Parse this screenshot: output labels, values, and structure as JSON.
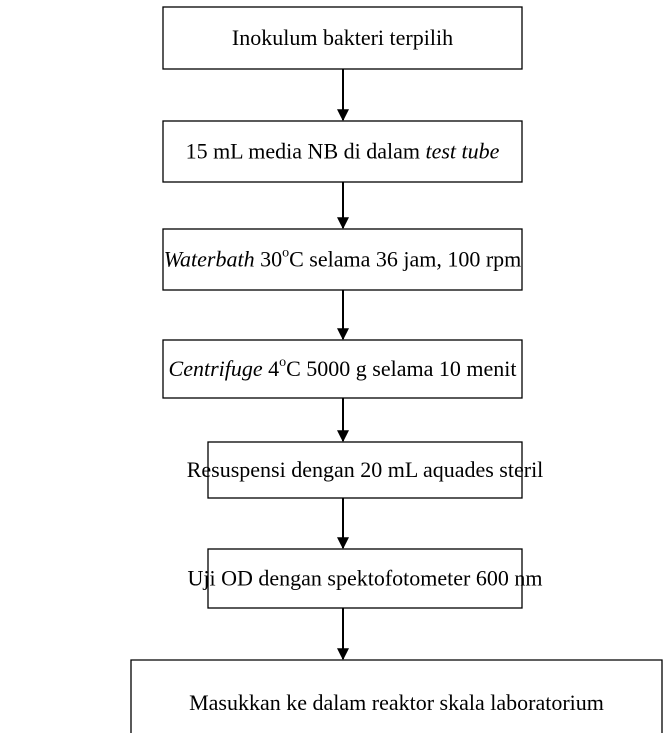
{
  "nodes": [
    {
      "parts": [
        {
          "text": "Inokulum bakteri terpilih"
        }
      ]
    },
    {
      "parts": [
        {
          "text": "15 mL media NB di dalam "
        },
        {
          "text": "test tube",
          "style": "italic"
        }
      ]
    },
    {
      "parts": [
        {
          "text": "Waterbath",
          "style": "italic"
        },
        {
          "text": " 30"
        },
        {
          "text": "o",
          "style": "sup"
        },
        {
          "text": "C selama 36 jam, 100 rpm"
        }
      ]
    },
    {
      "parts": [
        {
          "text": "Centrifuge",
          "style": "italic"
        },
        {
          "text": " 4"
        },
        {
          "text": "o",
          "style": "sup"
        },
        {
          "text": "C 5000 g selama 10 menit"
        }
      ]
    },
    {
      "parts": [
        {
          "text": "Resuspensi dengan 20 mL aquades steril"
        }
      ]
    },
    {
      "parts": [
        {
          "text": "Uji OD dengan spektofotometer 600 nm"
        }
      ]
    },
    {
      "parts": [
        {
          "text": "Masukkan ke dalam reaktor skala laboratorium"
        }
      ]
    }
  ]
}
